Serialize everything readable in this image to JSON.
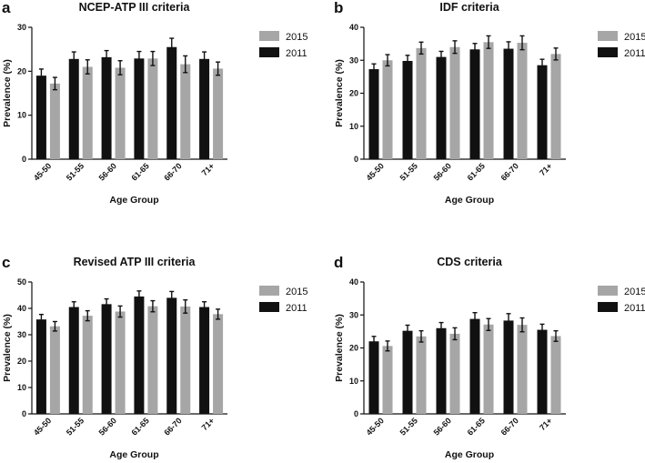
{
  "chart_data": [
    {
      "type": "bar",
      "panel_label": "a",
      "title": "NCEP-ATP III criteria",
      "xlabel": "Age Group",
      "ylabel": "Prevalence (%)",
      "ylim": [
        0,
        30
      ],
      "yticks": [
        0,
        10,
        20,
        30
      ],
      "categories": [
        "45-50",
        "51-55",
        "56-60",
        "61-65",
        "66-70",
        "71+"
      ],
      "legend": [
        "2015",
        "2011"
      ],
      "series": [
        {
          "name": "2011",
          "color": "#111111",
          "values": [
            19.0,
            22.8,
            23.2,
            22.9,
            25.5,
            22.8
          ],
          "errors": [
            1.5,
            1.6,
            1.5,
            1.6,
            2.0,
            1.6
          ]
        },
        {
          "name": "2015",
          "color": "#a6a6a6",
          "values": [
            17.2,
            21.0,
            20.8,
            22.9,
            21.6,
            20.6
          ],
          "errors": [
            1.4,
            1.6,
            1.6,
            1.6,
            1.9,
            1.5
          ]
        }
      ]
    },
    {
      "type": "bar",
      "panel_label": "b",
      "title": "IDF criteria",
      "xlabel": "Age Group",
      "ylabel": "Prevalence (%)",
      "ylim": [
        0,
        40
      ],
      "yticks": [
        0,
        10,
        20,
        30,
        40
      ],
      "categories": [
        "45-50",
        "51-55",
        "56-60",
        "61-65",
        "66-70",
        "71+"
      ],
      "legend": [
        "2015",
        "2011"
      ],
      "series": [
        {
          "name": "2011",
          "color": "#111111",
          "values": [
            27.3,
            29.8,
            31.0,
            33.3,
            33.5,
            28.5
          ],
          "errors": [
            1.6,
            1.7,
            1.7,
            1.8,
            2.1,
            1.8
          ]
        },
        {
          "name": "2015",
          "color": "#a6a6a6",
          "values": [
            30.0,
            33.7,
            34.0,
            35.5,
            35.3,
            31.9
          ],
          "errors": [
            1.7,
            1.8,
            1.9,
            1.9,
            2.1,
            1.8
          ]
        }
      ]
    },
    {
      "type": "bar",
      "panel_label": "c",
      "title": "Revised ATP III criteria",
      "xlabel": "Age Group",
      "ylabel": "Prevalence (%)",
      "ylim": [
        0,
        50
      ],
      "yticks": [
        0,
        10,
        20,
        30,
        40,
        50
      ],
      "categories": [
        "45-50",
        "51-55",
        "56-60",
        "61-65",
        "66-70",
        "71+"
      ],
      "legend": [
        "2015",
        "2011"
      ],
      "series": [
        {
          "name": "2011",
          "color": "#111111",
          "values": [
            35.8,
            40.5,
            41.6,
            44.5,
            44.0,
            40.5
          ],
          "errors": [
            1.9,
            2.0,
            2.0,
            2.1,
            2.4,
            2.0
          ]
        },
        {
          "name": "2015",
          "color": "#a6a6a6",
          "values": [
            33.2,
            37.2,
            38.8,
            40.8,
            40.7,
            37.8
          ],
          "errors": [
            1.8,
            1.9,
            2.1,
            2.1,
            2.5,
            1.9
          ]
        }
      ]
    },
    {
      "type": "bar",
      "panel_label": "d",
      "title": "CDS criteria",
      "xlabel": "Age Group",
      "ylabel": "Prevalence (%)",
      "ylim": [
        0,
        40
      ],
      "yticks": [
        0,
        10,
        20,
        30,
        40
      ],
      "categories": [
        "45-50",
        "51-55",
        "56-60",
        "61-65",
        "66-70",
        "71+"
      ],
      "legend": [
        "2015",
        "2011"
      ],
      "series": [
        {
          "name": "2011",
          "color": "#111111",
          "values": [
            22.0,
            25.2,
            26.0,
            28.8,
            28.3,
            25.5
          ],
          "errors": [
            1.5,
            1.7,
            1.7,
            1.9,
            2.1,
            1.7
          ]
        },
        {
          "name": "2015",
          "color": "#a6a6a6",
          "values": [
            20.6,
            23.5,
            24.3,
            27.1,
            27.0,
            23.6
          ],
          "errors": [
            1.5,
            1.7,
            1.8,
            1.8,
            2.1,
            1.6
          ]
        }
      ]
    }
  ]
}
